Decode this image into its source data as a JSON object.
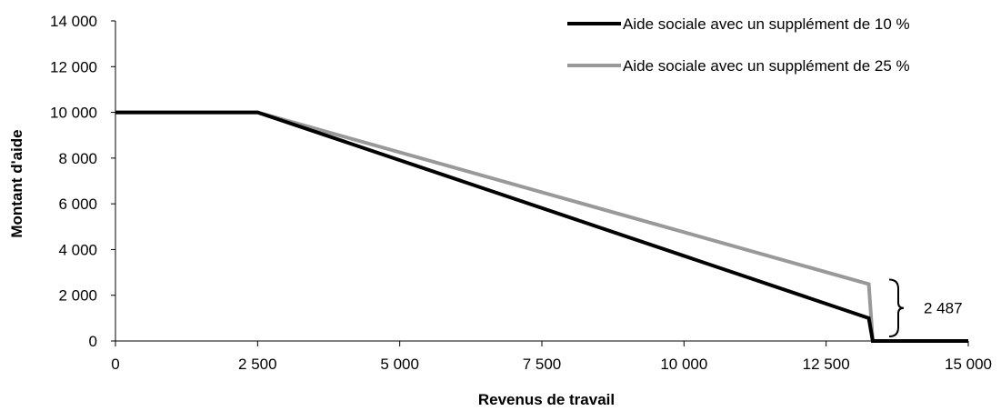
{
  "chart_data": {
    "type": "line",
    "xlabel": "Revenus de travail",
    "ylabel": "Montant d'aide",
    "xlim": [
      0,
      15000
    ],
    "ylim": [
      0,
      14000
    ],
    "x_ticks": [
      0,
      2500,
      5000,
      7500,
      10000,
      12500,
      15000
    ],
    "x_tick_labels": [
      "0",
      "2 500",
      "5 000",
      "7 500",
      "10 000",
      "12 500",
      "15 000"
    ],
    "y_ticks": [
      0,
      2000,
      4000,
      6000,
      8000,
      10000,
      12000,
      14000
    ],
    "y_tick_labels": [
      "0",
      "2 000",
      "4 000",
      "6 000",
      "8 000",
      "10 000",
      "12 000",
      "14 000"
    ],
    "grid": false,
    "legend_position": "top-right",
    "series": [
      {
        "name": "Aide sociale avec un supplément de 10 %",
        "color": "#000000",
        "points": [
          [
            0,
            10000
          ],
          [
            2500,
            10000
          ],
          [
            13250,
            1000
          ],
          [
            13320,
            0
          ],
          [
            15000,
            0
          ]
        ]
      },
      {
        "name": "Aide sociale avec un supplément de 25 %",
        "color": "#999999",
        "points": [
          [
            0,
            10000
          ],
          [
            2500,
            10000
          ],
          [
            13250,
            2487
          ],
          [
            13320,
            0
          ],
          [
            15000,
            0
          ]
        ]
      }
    ],
    "annotations": [
      {
        "text": "2 487",
        "at_x": 13250,
        "y_from": 0,
        "y_to": 2487
      }
    ]
  }
}
